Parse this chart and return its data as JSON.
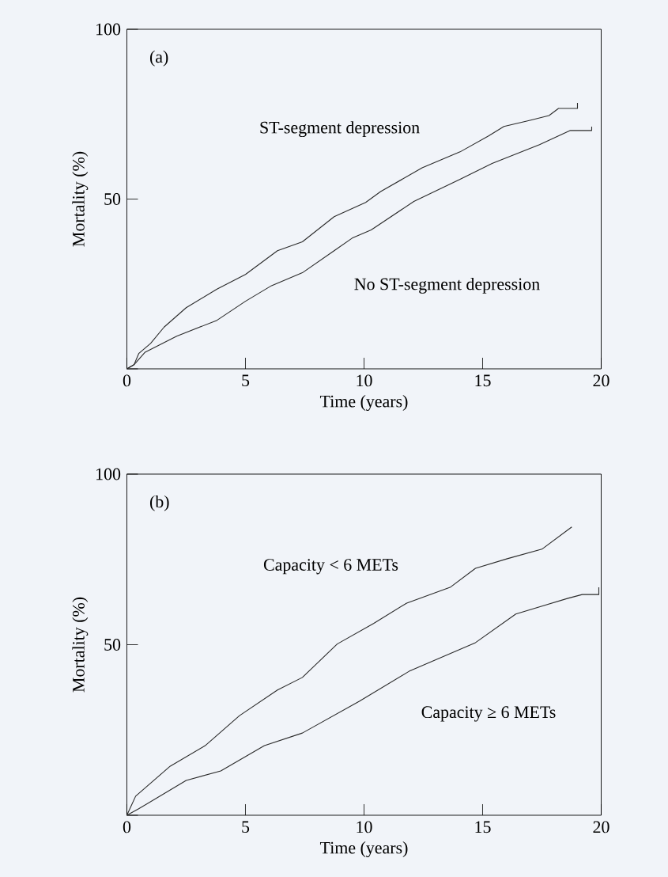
{
  "chart_data": [
    {
      "type": "line",
      "xlabel": "Time (years)",
      "ylabel": "Mortality (%)",
      "annotations": [
        "(a)"
      ],
      "xlim": [
        0,
        20
      ],
      "ylim": [
        0,
        100
      ],
      "xticks": [
        0,
        5,
        10,
        15,
        20
      ],
      "yticks": [
        {
          "value": 0,
          "label": null
        },
        50,
        100
      ],
      "grid": false,
      "series": [
        {
          "name": "ST-segment depression",
          "color": "#2a2a2a",
          "x": [
            0,
            0.3,
            0.5,
            1.0,
            1.57,
            2.5,
            3.8,
            5.0,
            6.35,
            7.4,
            8.74,
            10.07,
            10.7,
            12.45,
            14.05,
            15.25,
            15.9,
            17.0,
            17.8,
            18.2,
            19.0,
            19.0
          ],
          "values": [
            0,
            1.2,
            4.5,
            7.5,
            12.3,
            18,
            23.5,
            27.8,
            34.8,
            37.4,
            44.8,
            49,
            52.2,
            59.2,
            63.9,
            68.6,
            71.4,
            73.2,
            74.6,
            76.7,
            76.7,
            78.3
          ]
        },
        {
          "name": "No ST-segment depression",
          "color": "#2a2a2a",
          "x": [
            0,
            0.3,
            0.77,
            2.1,
            3.8,
            5.0,
            6.1,
            7.4,
            8.74,
            9.5,
            10.3,
            12.1,
            14.05,
            15.4,
            17.4,
            18.7,
            19.6,
            19.6
          ],
          "values": [
            0,
            1.2,
            4.9,
            9.6,
            14.3,
            19.9,
            24.5,
            28.3,
            34.8,
            38.5,
            40.9,
            49.3,
            55.8,
            60.5,
            66,
            70.2,
            70.2,
            71.3
          ]
        }
      ]
    },
    {
      "type": "line",
      "xlabel": "Time (years)",
      "ylabel": "Mortality (%)",
      "annotations": [
        "(b)"
      ],
      "xlim": [
        0,
        20
      ],
      "ylim": [
        0,
        100
      ],
      "xticks": [
        0,
        5,
        10,
        15,
        20
      ],
      "yticks": [
        {
          "value": 0,
          "label": null
        },
        50,
        100
      ],
      "grid": false,
      "series": [
        {
          "name": "Capacity < 6 METs",
          "color": "#2a2a2a",
          "x": [
            0,
            0.37,
            1.83,
            3.3,
            4.75,
            6.35,
            7.4,
            8.87,
            10.4,
            11.8,
            13.65,
            14.7,
            16.04,
            17.5,
            18.76
          ],
          "values": [
            0,
            5.6,
            14.4,
            20.4,
            29.2,
            36.7,
            40.4,
            50.2,
            56.2,
            62.2,
            66.9,
            72.4,
            75.2,
            78,
            84.5
          ]
        },
        {
          "name": "Capacity ≥ 6 METs",
          "color": "#2a2a2a",
          "x": [
            0,
            0.5,
            2.5,
            3.96,
            5.8,
            7.4,
            9.8,
            11.9,
            14.7,
            16.4,
            18.6,
            19.2,
            19.9,
            19.9
          ],
          "values": [
            0,
            1.9,
            10.2,
            13,
            20.4,
            24.1,
            33.4,
            42.2,
            50.6,
            59,
            63.6,
            64.7,
            64.7,
            66.8
          ]
        }
      ]
    }
  ]
}
